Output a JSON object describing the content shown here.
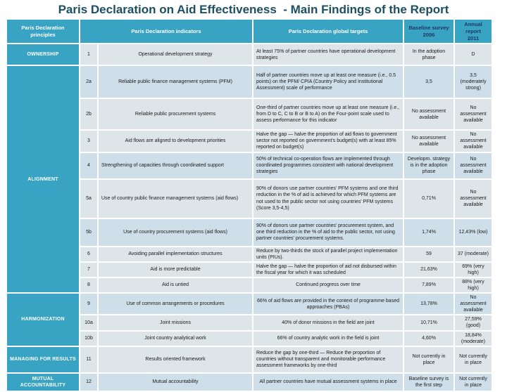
{
  "title": "Paris Declaration on Aid Effectiveness  - Main Findings of the Report",
  "colors": {
    "teal": "#38a3c2",
    "title_text": "#1d4f63",
    "band_a": "#dee5e8",
    "band_b": "#cfdfe9",
    "year_header_text": "#1f3864",
    "cell_text": "#1a1a1a"
  },
  "table": {
    "headers": {
      "principles": "Paris Declaration principles",
      "indicators": "Paris Declaration indicators",
      "targets": "Paris Declaration global targets",
      "baseline": "Baseline survey 2006",
      "annual": "Annual report 2011"
    },
    "groups": [
      {
        "principle": "OWNERSHIP",
        "rows": [
          "1"
        ]
      },
      {
        "principle": "ALIGNMENT",
        "rows": [
          "2a",
          "2b",
          "3",
          "4",
          "5a",
          "5b",
          "6",
          "7",
          "8"
        ]
      },
      {
        "principle": "HARMONIZATION",
        "rows": [
          "9",
          "10a",
          "10b"
        ]
      },
      {
        "principle": "MANAGING FOR RESULTS",
        "rows": [
          "11"
        ]
      },
      {
        "principle": "MUTUAL ACCOUNTABILITY",
        "rows": [
          "12"
        ]
      }
    ],
    "rows": [
      {
        "id": "1",
        "indicator": "Operational development strategy",
        "target": "At least 75% of partner countries have operational development strategies",
        "baseline": "In the adoption phase",
        "annual": "D"
      },
      {
        "id": "2a",
        "indicator": "Reliable public finance management systems (PFM)",
        "target": "Half of partner countries move up at least one measure (i.e., 0.5 points) on the PFM/ CPIA (Country Policy and Institutional Assessment) scale of performance",
        "baseline": "3,5",
        "annual": "3,5 (moderately strong)"
      },
      {
        "id": "2b",
        "indicator": "Reliable public procurement systems",
        "target": "One-third of partner countries move up at least one measure (i.e., from D to C, C to B or B to A) on the Four-point scale used to assess performance for this indicator",
        "baseline": "No assessment available",
        "annual": "No assessment available"
      },
      {
        "id": "3",
        "indicator": "Aid flows are aligned to development priorities",
        "target": "Halve the gap — halve the proportion of aid flows to government sector not reported on government's budget(s) with at least 85% reported on budget(s)",
        "baseline": "No assessment available",
        "annual": "No assessment available"
      },
      {
        "id": "4",
        "indicator": "Strengthening of capacities through coordinated support",
        "target": "50% of technical co-operation flows are implemented through coordinated programmes consistent with national development strategies",
        "baseline": "Developm. strategy is in the adoption phase",
        "annual": "No assessment available"
      },
      {
        "id": "5a",
        "indicator": "Use of country public finance management systems (aid flows)",
        "target": "90% of donors use partner countries' PFM systems and one third reduction in the % of aid is achieved for which PFM systems are not used to the public sector not using countries' PFM systems (Score 3,5-4,5)",
        "baseline": "0,71%",
        "annual": "No assessment available"
      },
      {
        "id": "5b",
        "indicator": "Use of country procurement systems (aid flows)",
        "target": "90% of donors use partner countries' procurement system, and one third reduction in the % of aid to the public sector, not using partner countries' procurement systems.",
        "baseline": "1,74%",
        "annual": "12,43% (low)"
      },
      {
        "id": "6",
        "indicator": "Avoiding parallel implementation structures",
        "target": "Reduce by two-thirds the stock of parallel project implementation units (PIUs).",
        "baseline": "59",
        "annual": "37 (moderate)"
      },
      {
        "id": "7",
        "indicator": "Aid is more predictable",
        "target": "Halve the gap — halve the proportion of aid not disbursed within the fiscal year for which it was scheduled",
        "baseline": "21,63%",
        "annual": "69% (very high)"
      },
      {
        "id": "8",
        "indicator": "Aid is untied",
        "target": "Continued progress over time",
        "baseline": "7,89%",
        "annual": "88% (very high)"
      },
      {
        "id": "9",
        "indicator": "Use of common arrangements or procedures",
        "target": "66% of aid flows are provided in the context of programme based approaches (PBAs)",
        "baseline": "13,78%",
        "annual": "No assessment available"
      },
      {
        "id": "10a",
        "indicator": "Joint missions",
        "target": "40% of donor missions in the field are joint",
        "baseline": "10,71%",
        "annual": "27,59% (good)"
      },
      {
        "id": "10b",
        "indicator": "Joint country analytical work",
        "target": "66% of country analytic work in the field is joint",
        "baseline": "4,60%",
        "annual": "18,84% (moderate)"
      },
      {
        "id": "11",
        "indicator": "Results oriented framework",
        "target": "Reduce the gap by one-third — Reduce the proportion of countries without transparent and monitorable performance assessment frameworks by one-third",
        "baseline": "Not currently in place",
        "annual": "Not currently in place"
      },
      {
        "id": "12",
        "indicator": "Mutual accountability",
        "target": "All partner countries have mutual assessment systems in place",
        "baseline": "Baseline survey is the first step",
        "annual": "Not currently in place"
      }
    ]
  }
}
